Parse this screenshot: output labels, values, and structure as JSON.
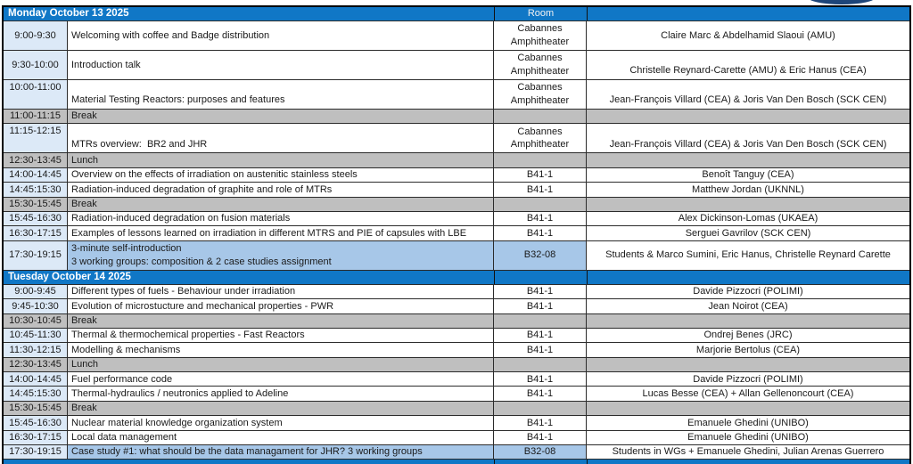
{
  "colors": {
    "header_blue": "#1077c6",
    "time_fill": "#dce9f7",
    "break_gray": "#bfbfbf",
    "highlight_blue": "#a7c7e8",
    "logo_navy": "#1d4579",
    "border": "#2b2b2b"
  },
  "table": {
    "room_header": "Room",
    "days": [
      {
        "title": "Monday October 13 2025",
        "rows": [
          {
            "time": "9:00-9:30",
            "desc": "Welcoming with coffee and Badge distribution",
            "room": "Cabannes\nAmphitheater",
            "speaker": "Claire Marc & Abdelhamid Slaoui (AMU)",
            "type": "session",
            "tall": true
          },
          {
            "time": "9:30-10:00",
            "desc": "Introduction talk",
            "room": "Cabannes\nAmphitheater",
            "speaker": "Christelle Reynard-Carette (AMU) & Eric Hanus (CEA)",
            "type": "session",
            "tall": true,
            "spk_va": "bottom"
          },
          {
            "time": "10:00-11:00",
            "desc": "Material Testing Reactors: purposes and features",
            "room": "Cabannes\nAmphitheater",
            "speaker": "Jean-François Villard (CEA) & Joris Van Den Bosch (SCK CEN)",
            "type": "session",
            "tall": true,
            "time_va": "top",
            "desc_va": "bottom",
            "spk_va": "bottom"
          },
          {
            "time": "11:00-11:15",
            "desc": "Break",
            "room": "",
            "speaker": "",
            "type": "break"
          },
          {
            "time": "11:15-12:15",
            "desc": "MTRs overview:  BR2 and JHR",
            "room": "Cabannes\nAmphitheater",
            "speaker": "Jean-François Villard (CEA) & Joris Van Den Bosch (SCK CEN)",
            "type": "session",
            "tall": true,
            "time_va": "top",
            "desc_va": "bottom",
            "spk_va": "bottom"
          },
          {
            "time": "12:30-13:45",
            "desc": "Lunch",
            "room": "",
            "speaker": "",
            "type": "break"
          },
          {
            "time": "14:00-14:45",
            "desc": "Overview on the effects of irradiation on austenitic stainless steels",
            "room": "B41-1",
            "speaker": "Benoît Tanguy (CEA)",
            "type": "session"
          },
          {
            "time": "14:45:15:30",
            "desc": "Radiation-induced degradation of graphite and role of MTRs",
            "room": "B41-1",
            "speaker": "Matthew Jordan (UKNNL)",
            "type": "session"
          },
          {
            "time": "15:30-15:45",
            "desc": "Break",
            "room": "",
            "speaker": "",
            "type": "break"
          },
          {
            "time": "15:45-16:30",
            "desc": "Radiation-induced degradation on fusion materials",
            "room": "B41-1",
            "speaker": "Alex Dickinson-Lomas (UKAEA)",
            "type": "session"
          },
          {
            "time": "16:30-17:15",
            "desc": "Examples of lessons learned on irradiation in different MTRS and PIE of capsules with LBE",
            "room": "B41-1",
            "speaker": "Serguei Gavrilov (SCK CEN)",
            "type": "session"
          },
          {
            "time": "17:30-19:15",
            "desc": "3-minute self-introduction\n3 working groups: composition & 2 case studies assignment",
            "room": "B32-08",
            "speaker": "Students & Marco Sumini, Eric Hanus, Christelle Reynard Carette",
            "type": "highlight",
            "tall": true
          }
        ]
      },
      {
        "title": "Tuesday October 14 2025",
        "rows": [
          {
            "time": "9:00-9:45",
            "desc": "Different types of fuels - Behaviour under irradiation",
            "room": "B41-1",
            "speaker": "Davide Pizzocri (POLIMI)",
            "type": "session"
          },
          {
            "time": "9:45-10:30",
            "desc": "Evolution of microstucture and mechanical properties - PWR",
            "room": "B41-1",
            "speaker": "Jean Noirot (CEA)",
            "type": "session"
          },
          {
            "time": "10:30-10:45",
            "desc": "Break",
            "room": "",
            "speaker": "",
            "type": "break"
          },
          {
            "time": "10:45-11:30",
            "desc": "Thermal & thermochemical properties - Fast Reactors",
            "room": "B41-1",
            "speaker": "Ondrej Benes (JRC)",
            "type": "session"
          },
          {
            "time": "11:30-12:15",
            "desc": "Modelling & mechanisms",
            "room": "B41-1",
            "speaker": "Marjorie Bertolus (CEA)",
            "type": "session"
          },
          {
            "time": "12:30-13:45",
            "desc": "Lunch",
            "room": "",
            "speaker": "",
            "type": "break"
          },
          {
            "time": "14:00-14:45",
            "desc": "Fuel performance code",
            "room": "B41-1",
            "speaker": "Davide Pizzocri (POLIMI)",
            "type": "session"
          },
          {
            "time": "14:45:15:30",
            "desc": "Thermal-hydraulics / neutronics applied to Adeline",
            "room": "B41-1",
            "speaker": "Lucas Besse (CEA) + Allan Gellenoncourt (CEA)",
            "type": "session"
          },
          {
            "time": "15:30-15:45",
            "desc": "Break",
            "room": "",
            "speaker": "",
            "type": "break"
          },
          {
            "time": "15:45-16:30",
            "desc": "Nuclear material knowledge organization system",
            "room": "B41-1",
            "speaker": "Emanuele Ghedini (UNIBO)",
            "type": "session"
          },
          {
            "time": "16:30-17:15",
            "desc": "Local data management",
            "room": "B41-1",
            "speaker": "Emanuele Ghedini (UNIBO)",
            "type": "session"
          },
          {
            "time": "17:30-19:15",
            "desc": "Case study #1: what should be the data managament for JHR? 3 working groups",
            "room": "B32-08",
            "speaker": "Students in WGs + Emanuele Ghedini, Julian Arenas Guerrero",
            "type": "highlight"
          }
        ]
      }
    ],
    "has_partial_next_day_row": true
  }
}
